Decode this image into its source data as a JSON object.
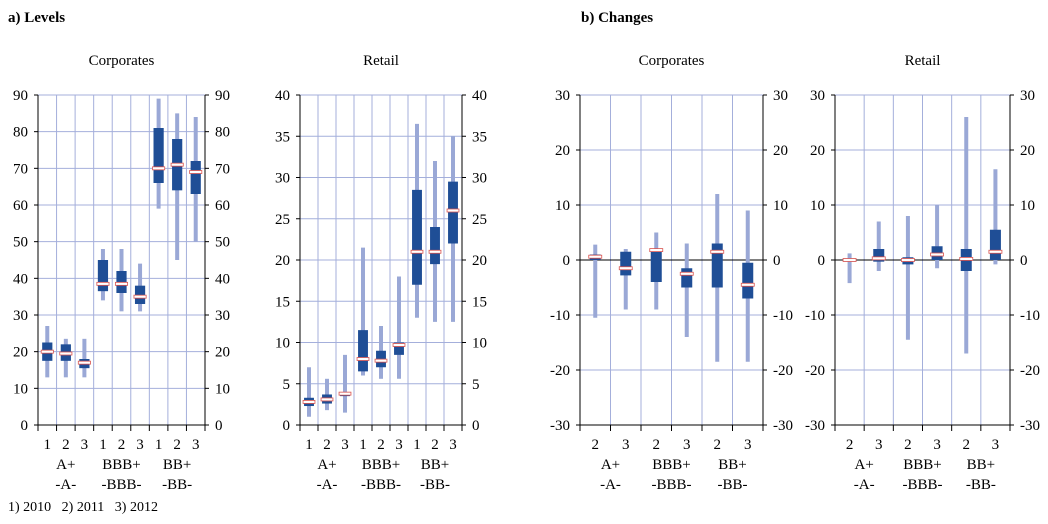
{
  "panel_a_title": "a) Levels",
  "panel_b_title": "b) Changes",
  "footnote": "1) 2010   2) 2011   3) 2012",
  "colors": {
    "box": "#1f4e96",
    "whisker": "#9aa8d6",
    "grid": "#a4afdb",
    "median": "#d9534f"
  },
  "chart_data": [
    {
      "type": "box",
      "panel": "a",
      "title": "Corporates",
      "ylim": [
        0,
        90
      ],
      "yticks": [
        0,
        10,
        20,
        30,
        40,
        50,
        60,
        70,
        80,
        90
      ],
      "tick_labels": [
        "1",
        "2",
        "3",
        "1",
        "2",
        "3",
        "1",
        "2",
        "3"
      ],
      "groups": [
        "A+\n-A-",
        "BBB+\n-BBB-",
        "BB+\n-BB-"
      ],
      "boxes": [
        {
          "q1": 17.5,
          "q3": 22.5,
          "min": 13,
          "max": 27,
          "median": 20
        },
        {
          "q1": 17.5,
          "q3": 22,
          "min": 13,
          "max": 23.5,
          "median": 19.5
        },
        {
          "q1": 15.5,
          "q3": 18,
          "min": 13,
          "max": 23.5,
          "median": 17
        },
        {
          "q1": 36.5,
          "q3": 45,
          "min": 34,
          "max": 48,
          "median": 38.5
        },
        {
          "q1": 36,
          "q3": 42,
          "min": 31,
          "max": 48,
          "median": 38.5
        },
        {
          "q1": 33,
          "q3": 38,
          "min": 31,
          "max": 44,
          "median": 35
        },
        {
          "q1": 66,
          "q3": 81,
          "min": 59,
          "max": 89,
          "median": 70
        },
        {
          "q1": 64,
          "q3": 78,
          "min": 45,
          "max": 85,
          "median": 71
        },
        {
          "q1": 63,
          "q3": 72,
          "min": 50,
          "max": 84,
          "median": 69
        }
      ]
    },
    {
      "type": "box",
      "panel": "a",
      "title": "Retail",
      "ylim": [
        0,
        40
      ],
      "yticks": [
        0,
        5,
        10,
        15,
        20,
        25,
        30,
        35,
        40
      ],
      "tick_labels": [
        "1",
        "2",
        "3",
        "1",
        "2",
        "3",
        "1",
        "2",
        "3"
      ],
      "groups": [
        "A+\n-A-",
        "BBB+\n-BBB-",
        "BB+\n-BB-"
      ],
      "boxes": [
        {
          "q1": 2.3,
          "q3": 3.3,
          "min": 1,
          "max": 7,
          "median": 2.8
        },
        {
          "q1": 2.6,
          "q3": 3.7,
          "min": 1.8,
          "max": 5.6,
          "median": 3.1
        },
        {
          "q1": 3.5,
          "q3": 4,
          "min": 1.5,
          "max": 8.5,
          "median": 3.8
        },
        {
          "q1": 6.5,
          "q3": 11.5,
          "min": 6,
          "max": 21.5,
          "median": 8
        },
        {
          "q1": 7,
          "q3": 9,
          "min": 5.6,
          "max": 12,
          "median": 7.8
        },
        {
          "q1": 8.5,
          "q3": 10,
          "min": 5.6,
          "max": 18,
          "median": 9.7
        },
        {
          "q1": 17,
          "q3": 28.5,
          "min": 13,
          "max": 36.5,
          "median": 21
        },
        {
          "q1": 19.5,
          "q3": 24,
          "min": 12.5,
          "max": 32,
          "median": 21
        },
        {
          "q1": 22,
          "q3": 29.5,
          "min": 12.5,
          "max": 35,
          "median": 26
        }
      ]
    },
    {
      "type": "box",
      "panel": "b",
      "title": "Corporates",
      "ylim": [
        -30,
        30
      ],
      "yticks": [
        -30,
        -20,
        -10,
        0,
        10,
        20,
        30
      ],
      "tick_labels": [
        "2",
        "3",
        "2",
        "3",
        "2",
        "3"
      ],
      "groups": [
        "A+\n-A-",
        "BBB+\n-BBB-",
        "BB+\n-BB-"
      ],
      "boxes": [
        {
          "q1": 0,
          "q3": 1,
          "min": -10.5,
          "max": 2.8,
          "median": 0.6
        },
        {
          "q1": -2.8,
          "q3": 1.5,
          "min": -9,
          "max": 2,
          "median": -1.5
        },
        {
          "q1": -4,
          "q3": 1.8,
          "min": -9,
          "max": 5,
          "median": 1.8
        },
        {
          "q1": -5,
          "q3": -1.5,
          "min": -14,
          "max": 3,
          "median": -2.5
        },
        {
          "q1": -5,
          "q3": 3,
          "min": -18.5,
          "max": 12,
          "median": 1.5
        },
        {
          "q1": -7,
          "q3": -0.5,
          "min": -18.5,
          "max": 9,
          "median": -4.5
        }
      ]
    },
    {
      "type": "box",
      "panel": "b",
      "title": "Retail",
      "ylim": [
        -30,
        30
      ],
      "yticks": [
        -30,
        -20,
        -10,
        0,
        10,
        20,
        30
      ],
      "tick_labels": [
        "2",
        "3",
        "2",
        "3",
        "2",
        "3"
      ],
      "groups": [
        "A+\n-A-",
        "BBB+\n-BBB-",
        "BB+\n-BB-"
      ],
      "boxes": [
        {
          "q1": -0.3,
          "q3": 0.3,
          "min": -4.2,
          "max": 1.2,
          "median": 0
        },
        {
          "q1": -0.3,
          "q3": 2,
          "min": -2,
          "max": 7,
          "median": 0.3
        },
        {
          "q1": -0.8,
          "q3": 0.5,
          "min": -14.5,
          "max": 8,
          "median": 0
        },
        {
          "q1": 0,
          "q3": 2.5,
          "min": -1.5,
          "max": 10,
          "median": 1
        },
        {
          "q1": -2,
          "q3": 2,
          "min": -17,
          "max": 26,
          "median": 0.2
        },
        {
          "q1": 0,
          "q3": 5.5,
          "min": -0.8,
          "max": 16.5,
          "median": 1.5
        }
      ]
    }
  ]
}
